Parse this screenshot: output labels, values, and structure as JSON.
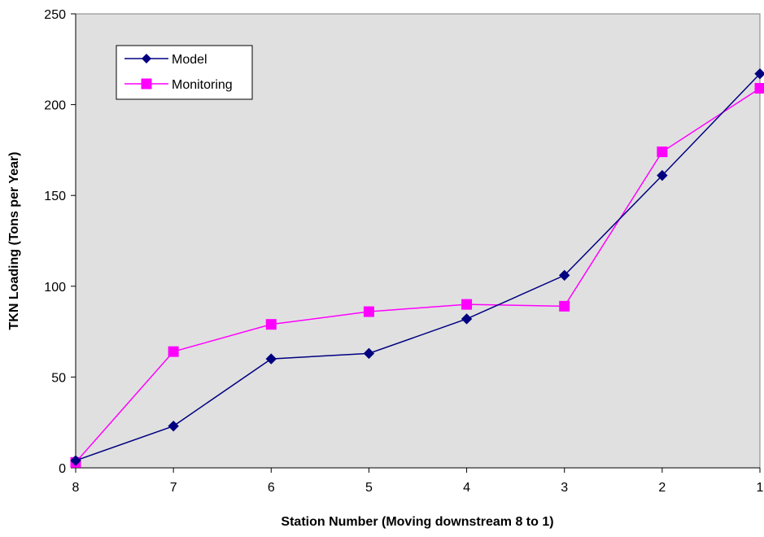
{
  "chart_data": {
    "type": "line",
    "title": "",
    "xlabel": "Station Number (Moving downstream 8 to 1)",
    "ylabel": "TKN Loading (Tons per Year)",
    "categories": [
      "8",
      "7",
      "6",
      "5",
      "4",
      "3",
      "2",
      "1"
    ],
    "ylim": [
      0,
      250
    ],
    "yticks": [
      0,
      50,
      100,
      150,
      200,
      250
    ],
    "grid": false,
    "plot_background": "#e0e0e0",
    "legend_position": "top-left",
    "series": [
      {
        "name": "Model",
        "color": "#000080",
        "marker": "diamond",
        "values": [
          4,
          23,
          60,
          63,
          82,
          106,
          161,
          217
        ]
      },
      {
        "name": "Monitoring",
        "color": "#ff00ff",
        "marker": "square",
        "values": [
          3,
          64,
          79,
          86,
          90,
          89,
          174,
          209
        ]
      }
    ]
  }
}
